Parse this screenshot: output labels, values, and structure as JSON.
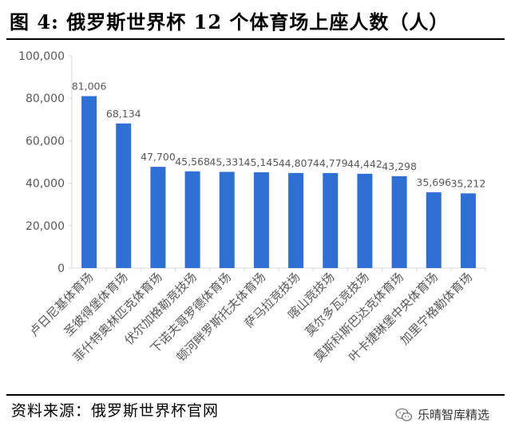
{
  "title": "图 4:  俄罗斯世界杯 12 个体育场上座人数（人）",
  "source": "资料来源：俄罗斯世界杯官网",
  "watermark": "乐晴智库精选",
  "colors": {
    "bar": "#2E6FD6",
    "axis": "#d9d9d9",
    "tick_text": "#595959"
  },
  "chart_data": {
    "type": "bar",
    "title": "",
    "xlabel": "",
    "ylabel": "",
    "ylim": [
      0,
      100000
    ],
    "yticks": [
      0,
      20000,
      40000,
      60000,
      80000,
      100000
    ],
    "ytick_labels": [
      "0",
      "20,000",
      "40,000",
      "60,000",
      "80,000",
      "100,000"
    ],
    "grid": false,
    "legend": "none",
    "categories": [
      "卢日尼基体育场",
      "圣彼得堡体育场",
      "菲什特奥林匹克体育场",
      "伏尔加格勒竞技场",
      "下诺夫哥罗德体育场",
      "顿河畔罗斯托夫体育场",
      "萨马拉竞技场",
      "喀山竞技场",
      "莫尔多瓦竞技场",
      "莫斯科斯巴达克体育场",
      "叶卡捷琳堡中央体育场",
      "加里宁格勒体育场"
    ],
    "values": [
      81006,
      68134,
      47700,
      45568,
      45331,
      45145,
      44807,
      44779,
      44442,
      43298,
      35696,
      35212
    ],
    "value_labels": [
      "81,006",
      "68,134",
      "47,700",
      "45,568",
      "45,331",
      "45,145",
      "44,807",
      "44,779",
      "44,442",
      "43,298",
      "35,696",
      "35,212"
    ]
  }
}
